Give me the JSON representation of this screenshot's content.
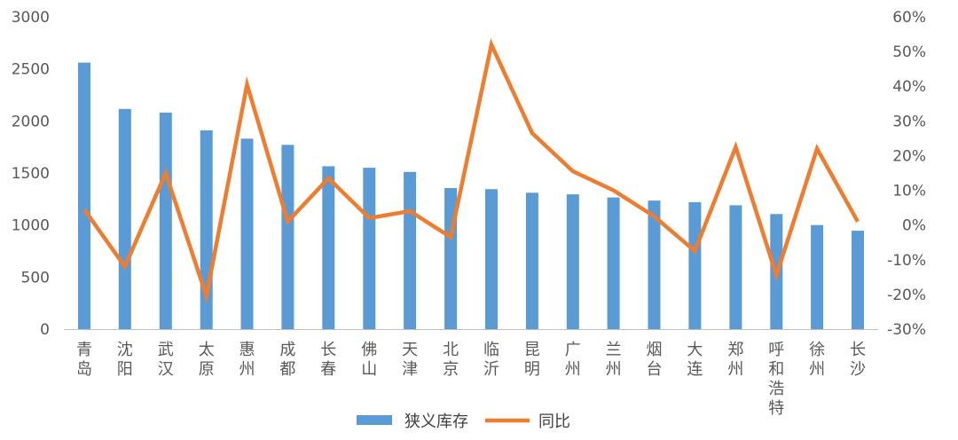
{
  "chart_data": {
    "type": "bar",
    "categories": [
      "青岛",
      "沈阳",
      "武汉",
      "太原",
      "惠州",
      "成都",
      "长春",
      "佛山",
      "天津",
      "北京",
      "临沂",
      "昆明",
      "广州",
      "兰州",
      "烟台",
      "大连",
      "郑州",
      "呼和浩特",
      "徐州",
      "长沙"
    ],
    "series": [
      {
        "name": "狭义库存",
        "type": "bar",
        "axis": "left",
        "color": "#5B9BD5",
        "values": [
          2560,
          2115,
          2080,
          1910,
          1830,
          1770,
          1565,
          1550,
          1510,
          1355,
          1345,
          1310,
          1295,
          1265,
          1235,
          1220,
          1190,
          1105,
          1000,
          945
        ]
      },
      {
        "name": "同比",
        "type": "line",
        "axis": "right",
        "color": "#ED7D31",
        "values": [
          4.5,
          -12,
          15,
          -20.5,
          40.5,
          1,
          13.5,
          2,
          4,
          -3.5,
          52,
          26.5,
          15.5,
          10,
          2.5,
          -7.5,
          22.5,
          -14.5,
          22,
          1
        ]
      }
    ],
    "y_left": {
      "min": 0,
      "max": 3000,
      "step": 500,
      "ticks": [
        "0",
        "500",
        "1000",
        "1500",
        "2000",
        "2500",
        "3000"
      ]
    },
    "y_right": {
      "min": -30,
      "max": 60,
      "step": 10,
      "ticks": [
        "-30%",
        "-20%",
        "-10%",
        "0%",
        "10%",
        "20%",
        "30%",
        "40%",
        "50%",
        "60%"
      ]
    },
    "grid": false,
    "legend": {
      "position": "bottom",
      "items": [
        "狭义库存",
        "同比"
      ]
    }
  }
}
